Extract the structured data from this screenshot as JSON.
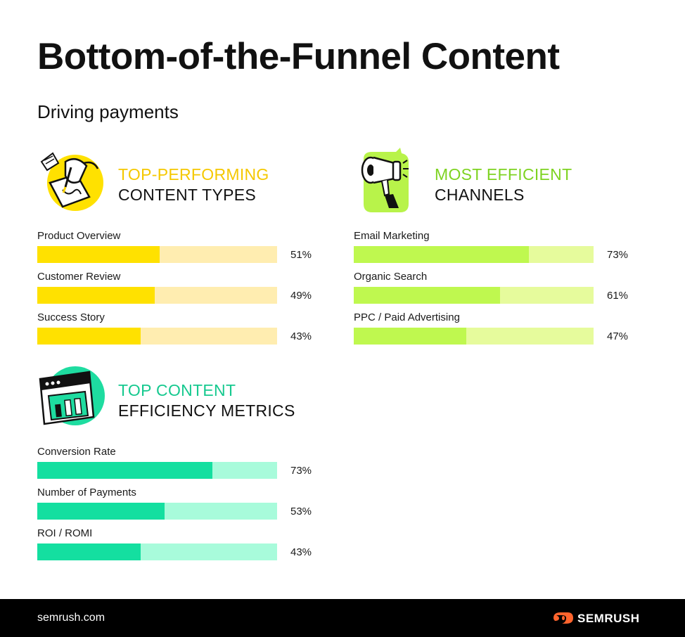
{
  "header": {
    "title": "Bottom-of-the-Funnel Content",
    "subtitle": "Driving payments"
  },
  "sections": [
    {
      "heading_accent": "TOP-PERFORMING",
      "heading_dark": "CONTENT TYPES",
      "icon": "writing-hand-icon",
      "accent_color": "#FFD600",
      "fill_color": "#FFE100",
      "track_color": "#FFEDB0"
    },
    {
      "heading_accent": "MOST EFFICIENT",
      "heading_dark": "CHANNELS",
      "icon": "megaphone-icon",
      "accent_color": "#7ED321",
      "fill_color": "#BFF84F",
      "track_color": "#E6FB9C"
    },
    {
      "heading_accent": "TOP CONTENT",
      "heading_dark": "EFFICIENCY METRICS",
      "icon": "analytics-window-icon",
      "accent_color": "#1EC99A",
      "fill_color": "#14DFA0",
      "track_color": "#A8FBDB"
    }
  ],
  "chart_data": [
    {
      "type": "bar",
      "title": "TOP-PERFORMING CONTENT TYPES",
      "categories": [
        "Product Overview",
        "Customer Review",
        "Success Story"
      ],
      "values": [
        51,
        49,
        43
      ],
      "value_labels": [
        "51%",
        "49%",
        "43%"
      ],
      "ylim": [
        0,
        100
      ],
      "orientation": "horizontal"
    },
    {
      "type": "bar",
      "title": "MOST EFFICIENT CHANNELS",
      "categories": [
        "Email Marketing",
        "Organic Search",
        "PPC / Paid Advertising"
      ],
      "values": [
        73,
        61,
        47
      ],
      "value_labels": [
        "73%",
        "61%",
        "47%"
      ],
      "ylim": [
        0,
        100
      ],
      "orientation": "horizontal"
    },
    {
      "type": "bar",
      "title": "TOP CONTENT EFFICIENCY METRICS",
      "categories": [
        "Conversion Rate",
        "Number of Payments",
        "ROI / ROMI"
      ],
      "values": [
        73,
        53,
        43
      ],
      "value_labels": [
        "73%",
        "53%",
        "43%"
      ],
      "ylim": [
        0,
        100
      ],
      "orientation": "horizontal"
    }
  ],
  "footer": {
    "site": "semrush.com",
    "logo_text": "SEMRUSH",
    "logo_icon": "semrush-fire-icon",
    "logo_color": "#FF642D"
  }
}
